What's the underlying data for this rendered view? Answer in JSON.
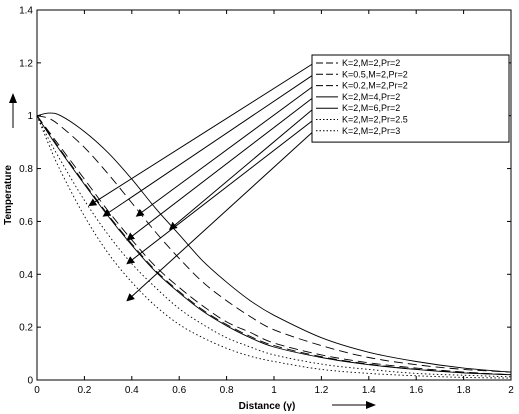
{
  "chart_data": {
    "type": "line",
    "title": "",
    "xlabel": "Distance (γ)",
    "ylabel": "Temperature",
    "xlim": [
      0,
      2
    ],
    "ylim": [
      0,
      1.4
    ],
    "x_ticks": [
      "0",
      "0.2",
      "0.4",
      "0.6",
      "0.8",
      "1",
      "1.2",
      "1.4",
      "1.6",
      "1.8",
      "2"
    ],
    "y_ticks": [
      "0",
      "0.2",
      "0.4",
      "0.6",
      "0.8",
      "1",
      "1.2",
      "1.4"
    ],
    "grid": false,
    "legend_position": "top-right",
    "x": [
      0,
      0.05,
      0.1,
      0.2,
      0.3,
      0.4,
      0.5,
      0.6,
      0.7,
      0.8,
      0.9,
      1.0,
      1.2,
      1.4,
      1.6,
      1.8,
      2.0
    ],
    "series": [
      {
        "name": "K=2,M=2,Pr=2",
        "style": "dashed",
        "values": [
          1.0,
          0.94,
          0.88,
          0.76,
          0.64,
          0.53,
          0.43,
          0.35,
          0.28,
          0.22,
          0.18,
          0.14,
          0.095,
          0.065,
          0.045,
          0.03,
          0.02
        ]
      },
      {
        "name": "K=0.5,M=2,Pr=2",
        "style": "dashed",
        "values": [
          1.0,
          0.935,
          0.87,
          0.745,
          0.625,
          0.515,
          0.415,
          0.335,
          0.265,
          0.21,
          0.165,
          0.13,
          0.088,
          0.06,
          0.041,
          0.028,
          0.02
        ]
      },
      {
        "name": "K=0.2,M=2,Pr=2",
        "style": "dashed",
        "values": [
          1.0,
          0.99,
          0.96,
          0.88,
          0.78,
          0.67,
          0.56,
          0.46,
          0.37,
          0.3,
          0.24,
          0.19,
          0.13,
          0.085,
          0.058,
          0.04,
          0.03
        ]
      },
      {
        "name": "K=2,M=4,Pr=2",
        "style": "solid",
        "values": [
          1.0,
          0.93,
          0.865,
          0.74,
          0.62,
          0.51,
          0.41,
          0.33,
          0.26,
          0.205,
          0.16,
          0.125,
          0.085,
          0.058,
          0.04,
          0.027,
          0.02
        ]
      },
      {
        "name": "K=2,M=6,Pr=2",
        "style": "solid",
        "values": [
          1.0,
          1.01,
          1.0,
          0.94,
          0.86,
          0.76,
          0.65,
          0.55,
          0.45,
          0.37,
          0.3,
          0.245,
          0.16,
          0.105,
          0.07,
          0.045,
          0.03
        ]
      },
      {
        "name": "K=2,M=2,Pr=2.5",
        "style": "dotted",
        "values": [
          1.0,
          0.91,
          0.83,
          0.68,
          0.55,
          0.44,
          0.35,
          0.27,
          0.21,
          0.16,
          0.125,
          0.095,
          0.06,
          0.04,
          0.025,
          0.018,
          0.012
        ]
      },
      {
        "name": "K=2,M=2,Pr=3",
        "style": "dotted",
        "values": [
          1.0,
          0.89,
          0.79,
          0.62,
          0.48,
          0.37,
          0.28,
          0.21,
          0.16,
          0.12,
          0.09,
          0.07,
          0.04,
          0.025,
          0.016,
          0.01,
          0.007
        ]
      }
    ],
    "annotations": [
      {
        "type": "arrow",
        "series": "K=2,M=2,Pr=2",
        "to": [
          0.22,
          0.66
        ]
      },
      {
        "type": "arrow",
        "series": "K=0.5,M=2,Pr=2",
        "to": [
          0.28,
          0.62
        ]
      },
      {
        "type": "arrow",
        "series": "K=0.2,M=2,Pr=2",
        "to": [
          0.42,
          0.62
        ]
      },
      {
        "type": "arrow",
        "series": "K=2,M=4,Pr=2",
        "to": [
          0.38,
          0.53
        ]
      },
      {
        "type": "arrow",
        "series": "K=2,M=6,Pr=2",
        "to": [
          0.56,
          0.57
        ]
      },
      {
        "type": "arrow",
        "series": "K=2,M=2,Pr=2.5",
        "to": [
          0.38,
          0.44
        ]
      },
      {
        "type": "arrow",
        "series": "K=2,M=2,Pr=3",
        "to": [
          0.38,
          0.3
        ]
      }
    ]
  }
}
